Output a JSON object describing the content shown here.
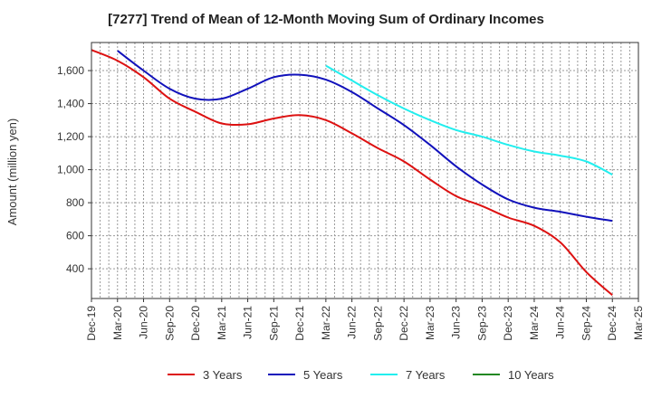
{
  "chart_data": {
    "type": "line",
    "title": "[7277]  Trend of Mean of 12-Month Moving Sum of Ordinary Incomes",
    "xlabel": "",
    "ylabel": "Amount (million yen)",
    "ylim": [
      220,
      1770
    ],
    "yticks": [
      400,
      600,
      800,
      1000,
      1200,
      1400,
      1600
    ],
    "ytick_labels": [
      "400",
      "600",
      "800",
      "1,000",
      "1,200",
      "1,400",
      "1,600"
    ],
    "categories": [
      "Dec-19",
      "Mar-20",
      "Jun-20",
      "Sep-20",
      "Dec-20",
      "Mar-21",
      "Jun-21",
      "Sep-21",
      "Dec-21",
      "Mar-22",
      "Jun-22",
      "Sep-22",
      "Dec-22",
      "Mar-23",
      "Jun-23",
      "Sep-23",
      "Dec-23",
      "Mar-24",
      "Jun-24",
      "Sep-24",
      "Dec-24",
      "Mar-25"
    ],
    "grid": true,
    "legend_position": "bottom",
    "series": [
      {
        "name": "3 Years",
        "color": "#dd1111",
        "x": [
          0,
          3,
          6,
          9,
          12,
          15,
          18,
          21,
          24,
          27,
          30,
          33,
          36,
          39,
          42,
          45,
          48,
          51,
          54,
          57,
          60
        ],
        "values": [
          1725,
          1660,
          1560,
          1430,
          1350,
          1280,
          1275,
          1310,
          1330,
          1300,
          1220,
          1130,
          1050,
          940,
          840,
          780,
          710,
          660,
          560,
          380,
          240
        ]
      },
      {
        "name": "5 Years",
        "color": "#1111bb",
        "x": [
          3,
          6,
          9,
          12,
          15,
          18,
          21,
          24,
          27,
          30,
          33,
          36,
          39,
          42,
          45,
          48,
          51,
          54,
          57,
          60
        ],
        "values": [
          1720,
          1600,
          1490,
          1430,
          1430,
          1490,
          1560,
          1575,
          1545,
          1470,
          1370,
          1270,
          1150,
          1020,
          910,
          820,
          770,
          745,
          715,
          690
        ]
      },
      {
        "name": "7 Years",
        "color": "#22eeee",
        "x": [
          27,
          30,
          33,
          36,
          39,
          42,
          45,
          48,
          51,
          54,
          57,
          60
        ],
        "values": [
          1630,
          1540,
          1450,
          1370,
          1300,
          1240,
          1200,
          1150,
          1110,
          1085,
          1050,
          970
        ]
      },
      {
        "name": "10 Years",
        "color": "#228822",
        "x": [],
        "values": []
      }
    ]
  }
}
